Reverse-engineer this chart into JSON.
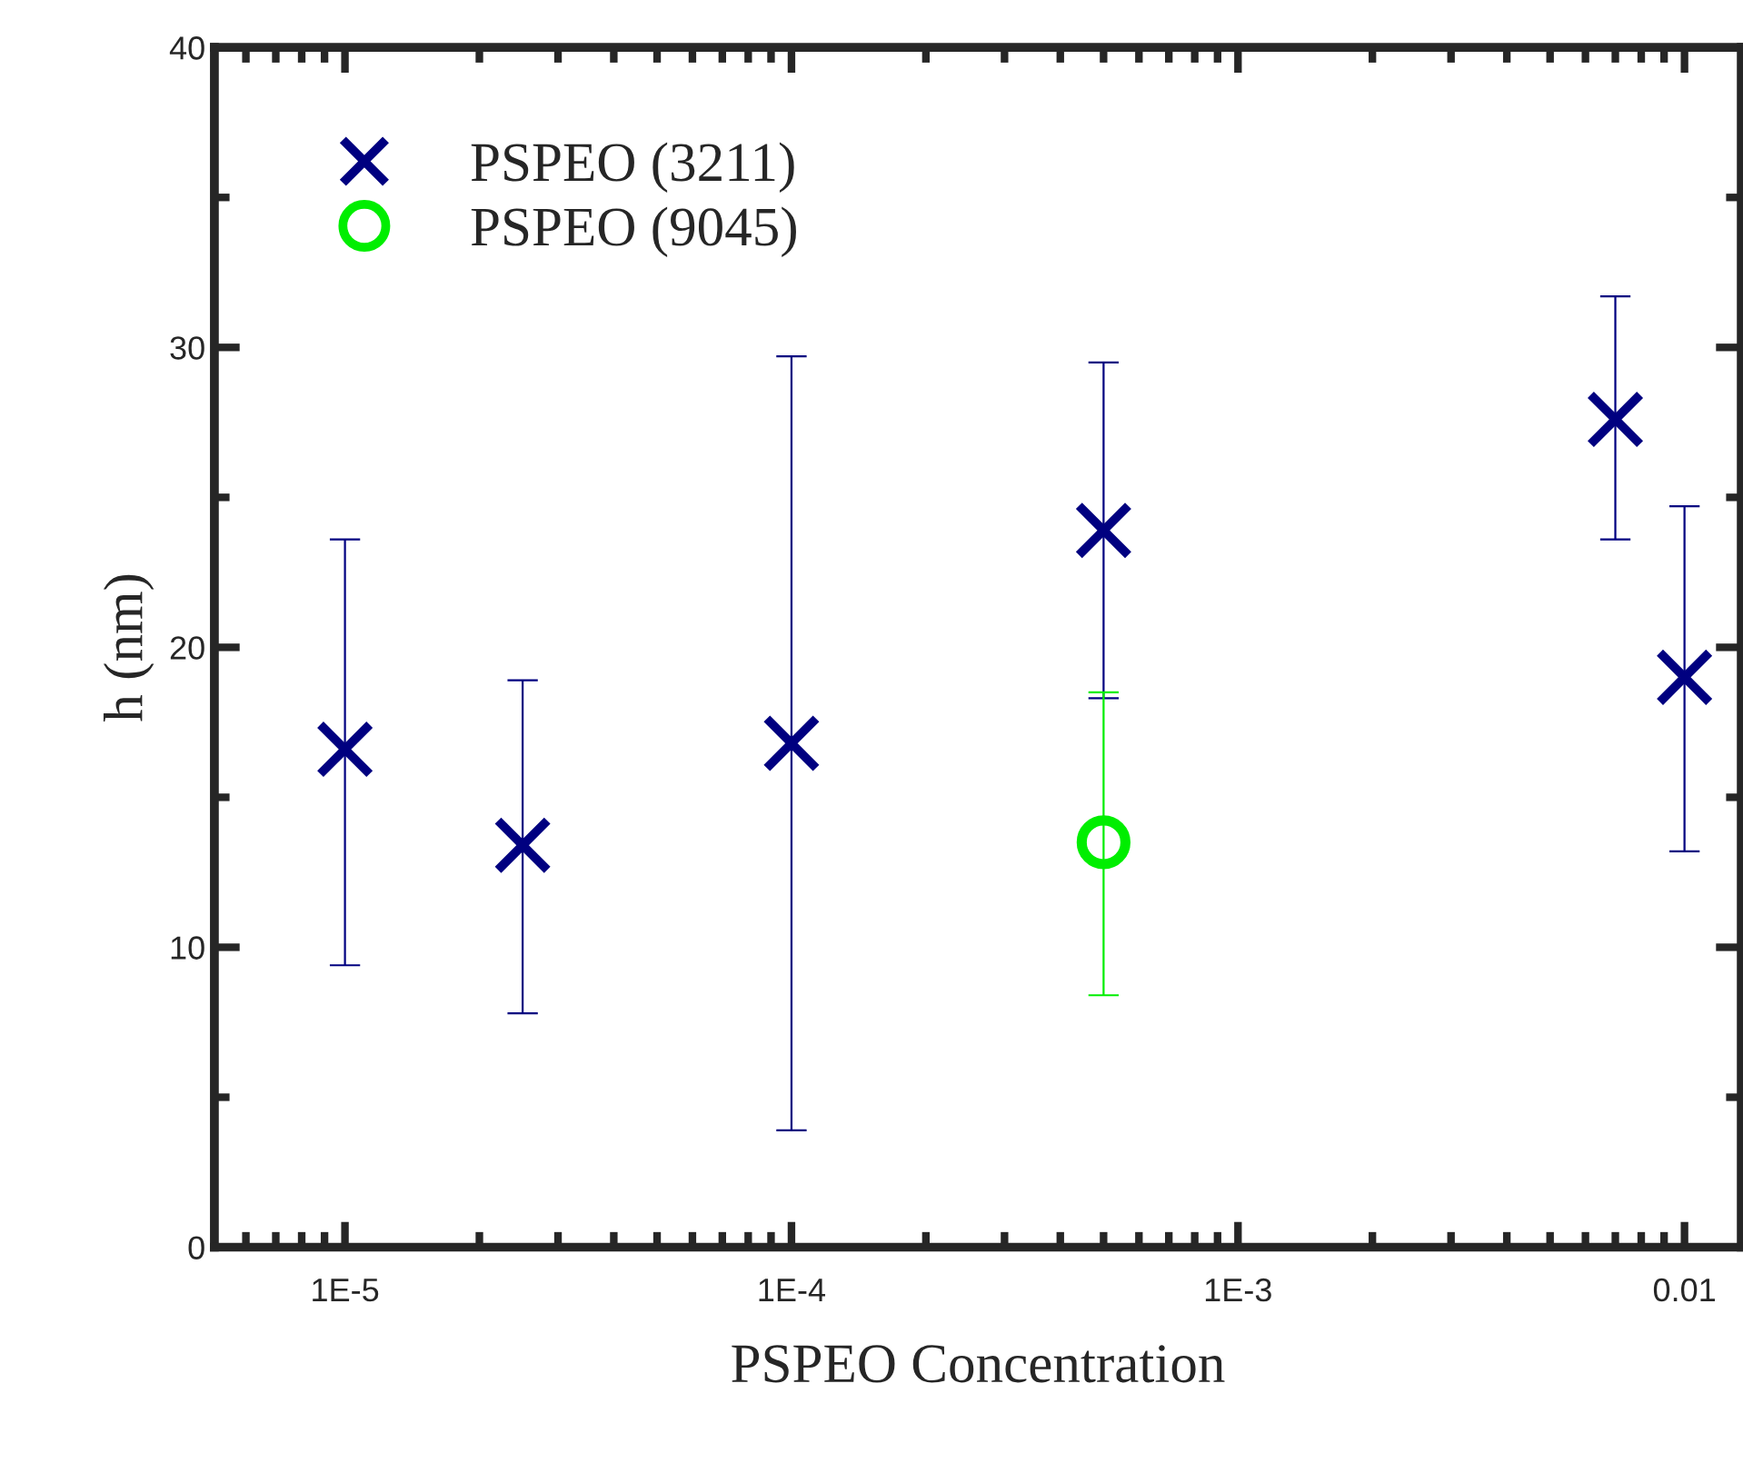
{
  "chart_data": {
    "type": "scatter",
    "xlabel": "PSPEO Concentration",
    "ylabel": "h (nm)",
    "log": "x",
    "xlim": [
      5.1e-06,
      0.0134
    ],
    "xticks": [
      {
        "value": 1e-05,
        "label": "1E-5"
      },
      {
        "value": 0.0001,
        "label": "1E-4"
      },
      {
        "value": 0.001,
        "label": "1E-3"
      },
      {
        "value": 0.01,
        "label": "0.01"
      }
    ],
    "ylim": [
      0,
      40
    ],
    "yticks": [
      0,
      10,
      20,
      30,
      40
    ],
    "grid": false,
    "legend": "top left",
    "series": [
      {
        "name": "PSPEO (3211)",
        "color": "#000080",
        "marker": "cross",
        "x": [
          1e-05,
          2.5e-05,
          0.0001,
          0.0005,
          0.007,
          0.01
        ],
        "values": [
          16.6,
          13.4,
          16.8,
          23.9,
          27.6,
          19.0
        ],
        "errors": [
          [
            9.4,
            23.6
          ],
          [
            7.8,
            18.9
          ],
          [
            3.9,
            29.7
          ],
          [
            18.3,
            29.5
          ],
          [
            23.6,
            31.7
          ],
          [
            13.2,
            24.7
          ]
        ]
      },
      {
        "name": "PSPEO (9045)",
        "color": "#00ee00",
        "marker": "circle",
        "x": [
          0.0005
        ],
        "values": [
          13.5
        ],
        "errors": [
          [
            8.4,
            18.5
          ]
        ]
      }
    ]
  }
}
